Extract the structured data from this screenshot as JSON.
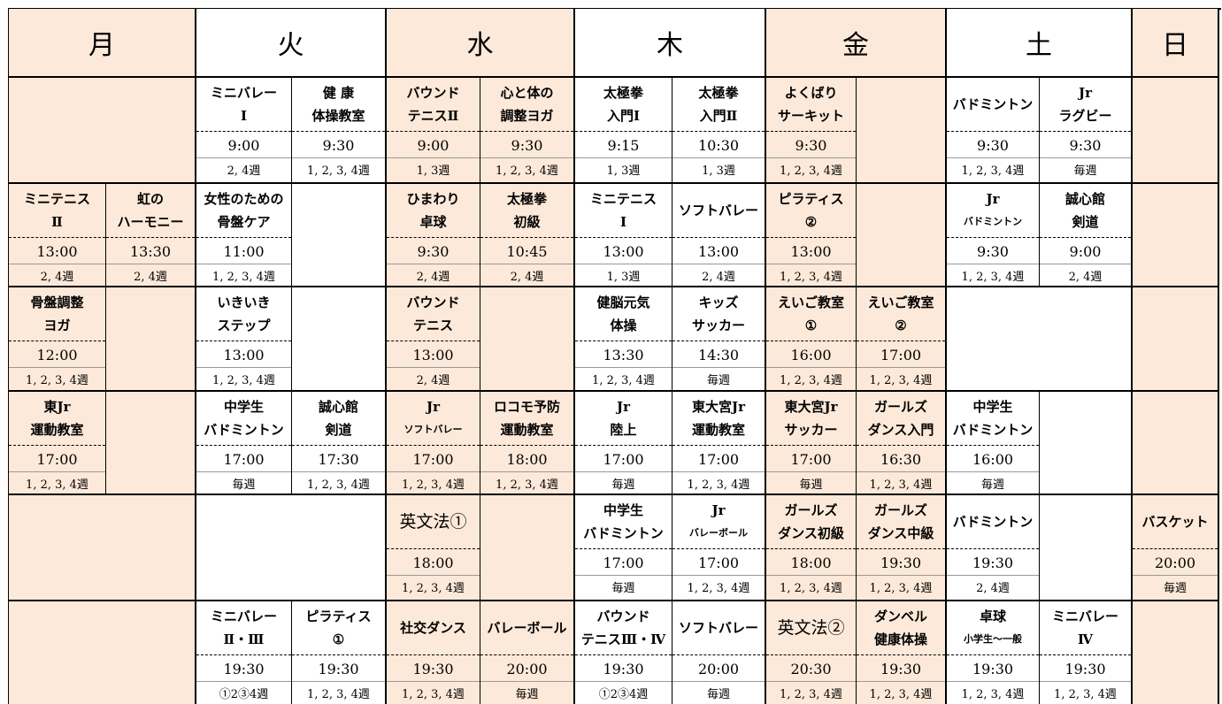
{
  "days": [
    "月",
    "火",
    "水",
    "木",
    "金",
    "土",
    "日"
  ],
  "rows": [
    [
      null,
      null,
      {
        "name": [
          "ミニバレー",
          "Ⅰ"
        ],
        "time": "9:00",
        "weeks": "2, 4週"
      },
      {
        "name": [
          "健 康",
          "体操教室"
        ],
        "time": "9:30",
        "weeks": "1, 2, 3, 4週"
      },
      {
        "name": [
          "バウンド",
          "テニスⅡ"
        ],
        "time": "9:00",
        "weeks": "1, 3週"
      },
      {
        "name": [
          "心と体の",
          "調整ヨガ"
        ],
        "time": "9:30",
        "weeks": "1, 2, 3, 4週"
      },
      {
        "name": [
          "太極拳",
          "入門Ⅰ"
        ],
        "time": "9:15",
        "weeks": "1, 3週"
      },
      {
        "name": [
          "太極拳",
          "入門Ⅱ"
        ],
        "time": "10:30",
        "weeks": "1, 3週"
      },
      {
        "name": [
          "よくばり",
          "サーキット"
        ],
        "time": "9:30",
        "weeks": "1, 2, 3, 4週"
      },
      null,
      {
        "name": [
          "バドミントン"
        ],
        "time": "9:30",
        "weeks": "1, 2, 3, 4週"
      },
      {
        "name": [
          "Jr",
          "ラグビー"
        ],
        "time": "9:30",
        "weeks": "毎週"
      },
      null
    ],
    [
      {
        "name": [
          "ミニテニス",
          "Ⅱ"
        ],
        "time": "13:00",
        "weeks": "2, 4週"
      },
      {
        "name": [
          "虹の",
          "ハーモニー"
        ],
        "time": "13:30",
        "weeks": "2, 4週"
      },
      {
        "name": [
          "女性のための",
          "骨盤ケア"
        ],
        "time": "11:00",
        "weeks": "1, 2, 3, 4週"
      },
      null,
      {
        "name": [
          "ひまわり",
          "卓球"
        ],
        "time": "9:30",
        "weeks": "2, 4週"
      },
      {
        "name": [
          "太極拳",
          "初級"
        ],
        "time": "10:45",
        "weeks": "2, 4週"
      },
      {
        "name": [
          "ミニテニス",
          "Ⅰ"
        ],
        "time": "13:00",
        "weeks": "1, 3週"
      },
      {
        "name": [
          "ソフトバレー"
        ],
        "time": "13:00",
        "weeks": "2, 4週"
      },
      {
        "name": [
          "ピラティス",
          "②"
        ],
        "time": "13:00",
        "weeks": "1, 2, 3, 4週"
      },
      null,
      {
        "name": [
          "Jr",
          "バドミントン"
        ],
        "time": "9:30",
        "weeks": "1, 2, 3, 4週"
      },
      {
        "name": [
          "誠心館",
          "剣道"
        ],
        "time": "9:00",
        "weeks": "2, 4週"
      },
      null
    ],
    [
      {
        "name": [
          "骨盤調整",
          "ヨガ"
        ],
        "time": "12:00",
        "weeks": "1, 2, 3, 4週"
      },
      null,
      {
        "name": [
          "いきいき",
          "ステップ"
        ],
        "time": "13:00",
        "weeks": "1, 2, 3, 4週"
      },
      null,
      {
        "name": [
          "バウンド",
          "テニス"
        ],
        "time": "13:00",
        "weeks": "2, 4週"
      },
      null,
      {
        "name": [
          "健脳元気",
          "体操"
        ],
        "time": "13:30",
        "weeks": "1, 2, 3, 4週"
      },
      {
        "name": [
          "キッズ",
          "サッカー"
        ],
        "time": "14:30",
        "weeks": "毎週"
      },
      {
        "name": [
          "えいご教室",
          "①"
        ],
        "time": "16:00",
        "weeks": "1, 2, 3, 4週"
      },
      {
        "name": [
          "えいご教室",
          "②"
        ],
        "time": "17:00",
        "weeks": "1, 2, 3, 4週"
      },
      null,
      null,
      null
    ],
    [
      {
        "name": [
          "東Jr",
          "運動教室"
        ],
        "time": "17:00",
        "weeks": "1, 2, 3, 4週"
      },
      null,
      {
        "name": [
          "中学生",
          "バドミントン"
        ],
        "time": "17:00",
        "weeks": "毎週"
      },
      {
        "name": [
          "誠心館",
          "剣道"
        ],
        "time": "17:30",
        "weeks": "1, 2, 3, 4週"
      },
      {
        "name": [
          "Jr",
          "ソフトバレー"
        ],
        "time": "17:00",
        "weeks": "1, 2, 3, 4週"
      },
      {
        "name": [
          "ロコモ予防",
          "運動教室"
        ],
        "time": "18:00",
        "weeks": "1, 2, 3, 4週"
      },
      {
        "name": [
          "Jr",
          "陸上"
        ],
        "time": "17:00",
        "weeks": "毎週"
      },
      {
        "name": [
          "東大宮Jr",
          "運動教室"
        ],
        "time": "17:00",
        "weeks": "1, 2, 3, 4週"
      },
      {
        "name": [
          "東大宮Jr",
          "サッカー"
        ],
        "time": "17:00",
        "weeks": "毎週"
      },
      {
        "name": [
          "ガールズ",
          "ダンス入門"
        ],
        "time": "16:30",
        "weeks": "1, 2, 3, 4週"
      },
      {
        "name": [
          "中学生",
          "バドミントン"
        ],
        "time": "16:00",
        "weeks": "毎週"
      },
      null,
      null
    ],
    [
      null,
      null,
      null,
      null,
      {
        "name": [
          "英文法①"
        ],
        "time": "18:00",
        "weeks": "1, 2, 3, 4週"
      },
      null,
      {
        "name": [
          "中学生",
          "バドミントン"
        ],
        "time": "17:00",
        "weeks": "毎週"
      },
      {
        "name": [
          "Jr",
          "バレーボール"
        ],
        "time": "17:00",
        "weeks": "1, 2, 3, 4週"
      },
      {
        "name": [
          "ガールズ",
          "ダンス初級"
        ],
        "time": "18:00",
        "weeks": "1, 2, 3, 4週"
      },
      {
        "name": [
          "ガールズ",
          "ダンス中級"
        ],
        "time": "19:30",
        "weeks": "1, 2, 3, 4週"
      },
      {
        "name": [
          "バドミントン"
        ],
        "time": "19:30",
        "weeks": "2, 4週"
      },
      null,
      {
        "name": [
          "バスケット"
        ],
        "time": "20:00",
        "weeks": "毎週"
      }
    ],
    [
      null,
      null,
      {
        "name": [
          "ミニバレー",
          "Ⅱ・Ⅲ"
        ],
        "time": "19:30",
        "weeks": "①2③4週"
      },
      {
        "name": [
          "ピラティス",
          "①"
        ],
        "time": "19:30",
        "weeks": "1, 2, 3, 4週"
      },
      {
        "name": [
          "社交ダンス"
        ],
        "time": "19:30",
        "weeks": "1, 2, 3, 4週"
      },
      {
        "name": [
          "バレーボール"
        ],
        "time": "20:00",
        "weeks": "毎週"
      },
      {
        "name": [
          "バウンド",
          "テニスⅢ・Ⅳ"
        ],
        "time": "19:30",
        "weeks": "①2③4週"
      },
      {
        "name": [
          "ソフトバレー"
        ],
        "time": "20:00",
        "weeks": "毎週"
      },
      {
        "name": [
          "英文法②"
        ],
        "time": "20:30",
        "weeks": "1, 2, 3, 4週"
      },
      {
        "name": [
          "ダンベル",
          "健康体操"
        ],
        "time": "19:30",
        "weeks": "1, 2, 3, 4週"
      },
      {
        "name": [
          "卓球",
          "小学生～一般"
        ],
        "time": "19:30",
        "weeks": "1, 2, 3, 4週"
      },
      {
        "name": [
          "ミニバレー",
          "Ⅳ"
        ],
        "time": "19:30",
        "weeks": "1, 2, 3, 4週"
      },
      null
    ]
  ]
}
